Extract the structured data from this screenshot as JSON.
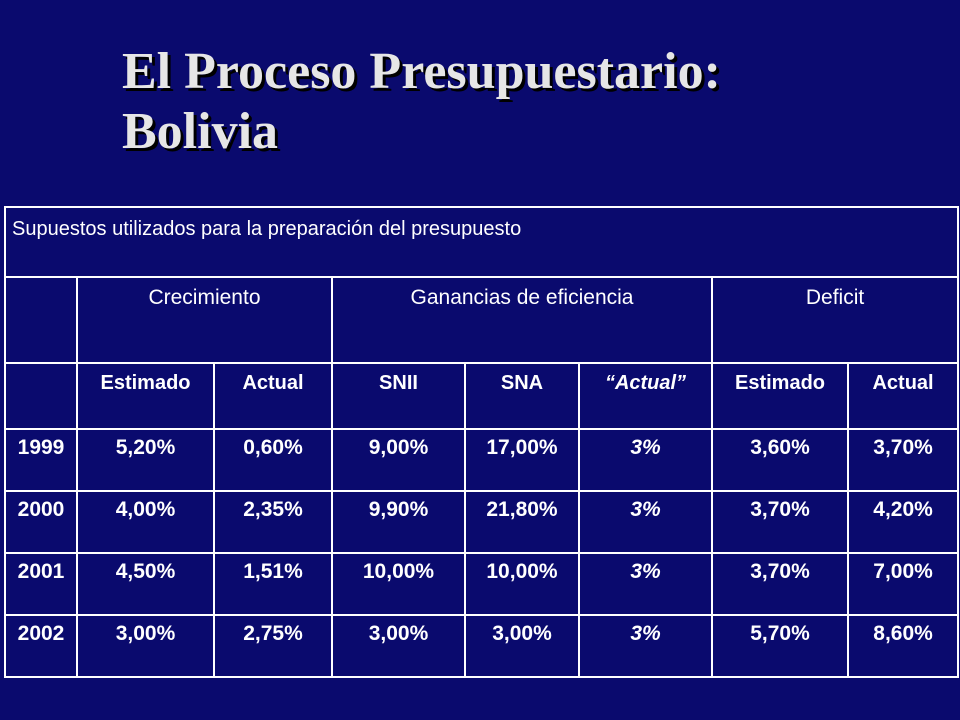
{
  "title": {
    "line1": "El Proceso Presupuestario:",
    "line2": "Bolivia"
  },
  "table": {
    "caption": "Supuestos utilizados para la preparación del presupuesto",
    "groups": {
      "crecimiento": "Crecimiento",
      "ganancias": "Ganancias de eficiencia",
      "deficit": "Deficit"
    },
    "subheaders": {
      "crec_estimado": "Estimado",
      "crec_actual": "Actual",
      "snii": "SNII",
      "sna": "SNA",
      "gan_actual": "“Actual”",
      "def_estimado": "Estimado",
      "def_actual": "Actual"
    },
    "rows": [
      {
        "year": "1999",
        "crec_estimado": "5,20%",
        "crec_actual": "0,60%",
        "snii": "9,00%",
        "sna": "17,00%",
        "gan_actual": "3%",
        "def_estimado": "3,60%",
        "def_actual": "3,70%"
      },
      {
        "year": "2000",
        "crec_estimado": "4,00%",
        "crec_actual": "2,35%",
        "snii": "9,90%",
        "sna": "21,80%",
        "gan_actual": "3%",
        "def_estimado": "3,70%",
        "def_actual": "4,20%"
      },
      {
        "year": "2001",
        "crec_estimado": "4,50%",
        "crec_actual": "1,51%",
        "snii": "10,00%",
        "sna": "10,00%",
        "gan_actual": "3%",
        "def_estimado": "3,70%",
        "def_actual": "7,00%"
      },
      {
        "year": "2002",
        "crec_estimado": "3,00%",
        "crec_actual": "2,75%",
        "snii": "3,00%",
        "sna": "3,00%",
        "gan_actual": "3%",
        "def_estimado": "5,70%",
        "def_actual": "8,60%"
      }
    ]
  },
  "colors": {
    "background": "#0a0a6e",
    "title": "#e6e6e6",
    "text": "#ffffff",
    "highlight": "#ffff4d",
    "grid": "#ffffff"
  }
}
